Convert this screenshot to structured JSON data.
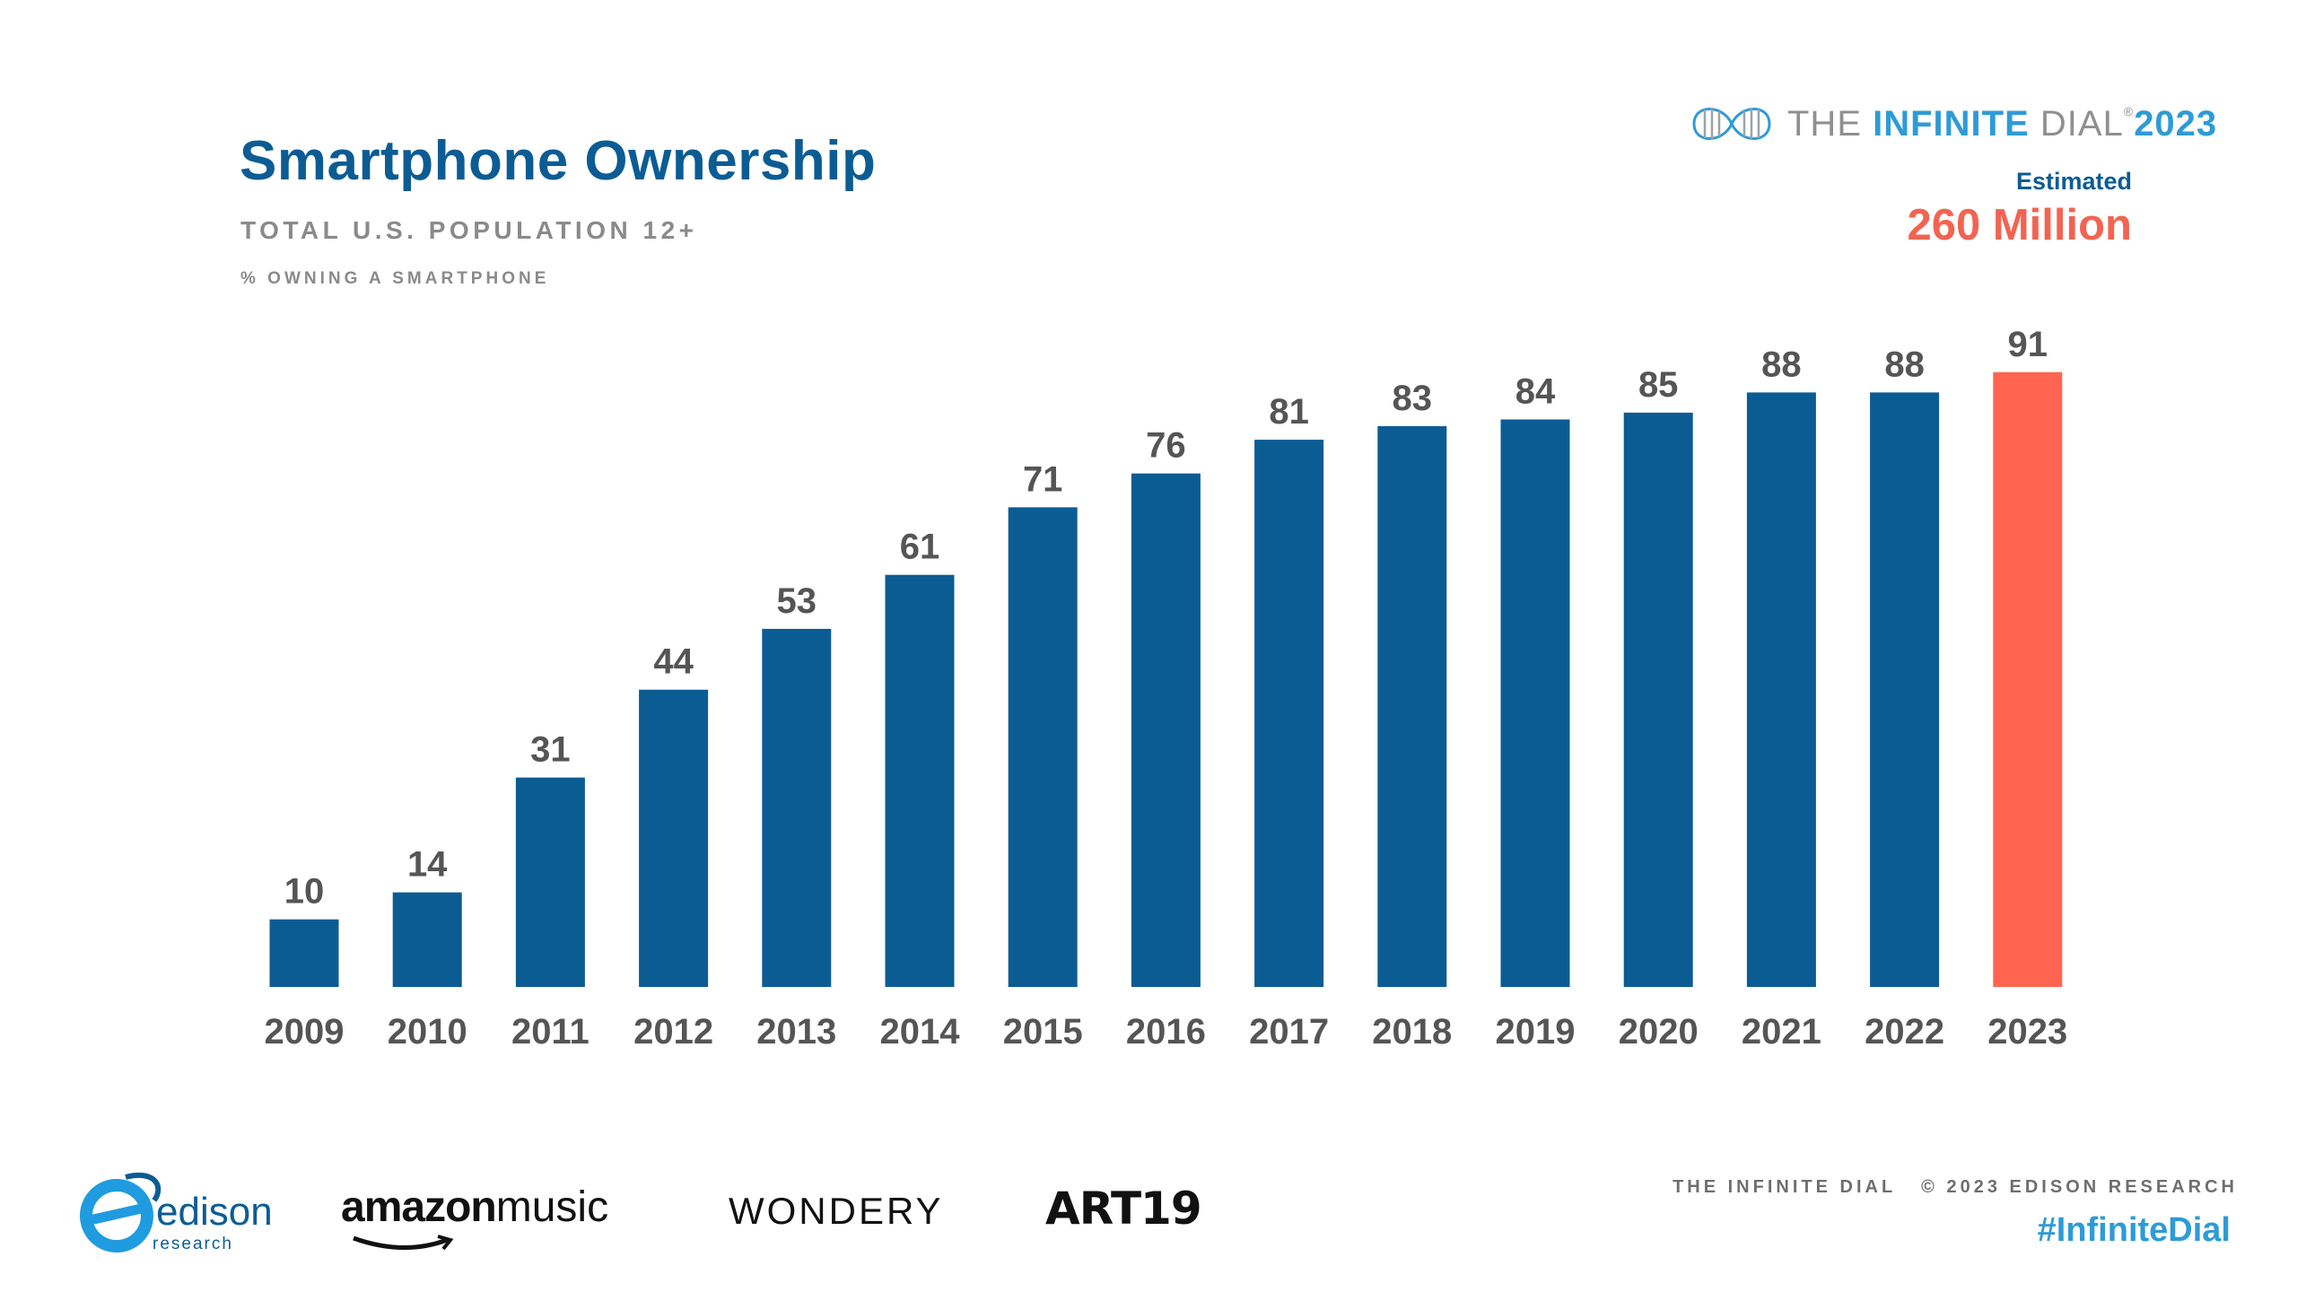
{
  "header": {
    "title": "Smartphone Ownership",
    "subtitle": "TOTAL U.S. POPULATION 12+",
    "ylabel": "% OWNING A SMARTPHONE"
  },
  "brand": {
    "the": "THE",
    "infinite": "INFINITE",
    "dial": "DIAL",
    "reg": "®",
    "year": "2023"
  },
  "estimate": {
    "label": "Estimated",
    "value": "260 Million"
  },
  "chart_data": {
    "type": "bar",
    "title": "Smartphone Ownership",
    "subtitle": "TOTAL U.S. POPULATION 12+",
    "ylabel": "% OWNING A SMARTPHONE",
    "xlabel": "",
    "categories": [
      "2009",
      "2010",
      "2011",
      "2012",
      "2013",
      "2014",
      "2015",
      "2016",
      "2017",
      "2018",
      "2019",
      "2020",
      "2021",
      "2022",
      "2023"
    ],
    "values": [
      10,
      14,
      31,
      44,
      53,
      61,
      71,
      76,
      81,
      83,
      84,
      85,
      88,
      88,
      91
    ],
    "ylim": [
      0,
      100
    ],
    "grid": false,
    "legend": "none",
    "colors": {
      "bar": "#0C5C94",
      "highlight": "#FF6550",
      "label": "#555555"
    },
    "highlight_index": 14
  },
  "footer": {
    "logos": {
      "edison_word": "edison",
      "edison_sub": "research",
      "amazon_bold": "amazon",
      "amazon_rest": "music",
      "wondery": "WONDERY",
      "art19": "ART19"
    },
    "credit_left": "THE INFINITE DIAL",
    "credit_right": "© 2023 EDISON RESEARCH",
    "hashtag": "#InfiniteDial"
  }
}
